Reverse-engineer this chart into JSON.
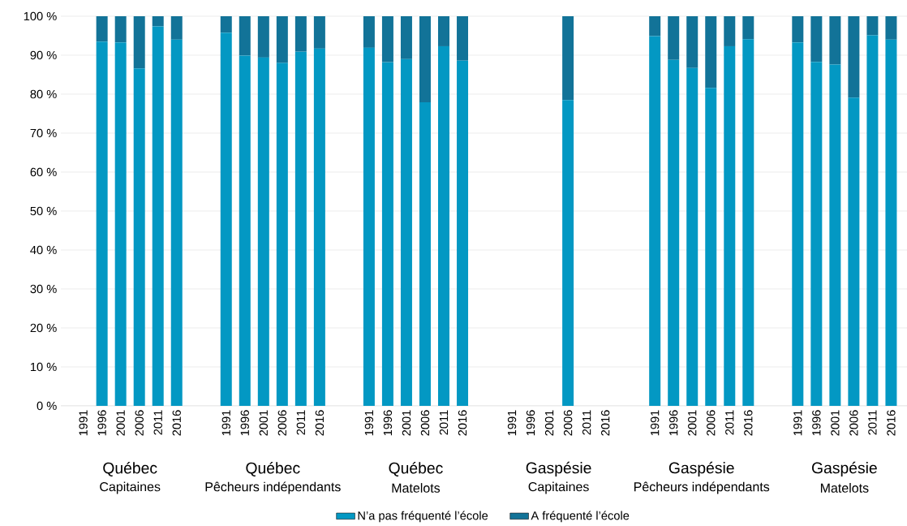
{
  "chart_data": {
    "type": "bar",
    "stacked": true,
    "categories": [
      "1991",
      "1996",
      "2001",
      "2006",
      "2011",
      "2016",
      "1991",
      "1996",
      "2001",
      "2006",
      "2011",
      "2016",
      "1991",
      "1996",
      "2001",
      "2006",
      "2011",
      "2016",
      "1991",
      "1996",
      "2001",
      "2006",
      "2011",
      "2016",
      "1991",
      "1996",
      "2001",
      "2006",
      "2011",
      "2016",
      "1991",
      "1996",
      "2001",
      "2006",
      "2011",
      "2016"
    ],
    "series": [
      {
        "name": "N’a pas fréquenté l’école",
        "color": "#0398c3",
        "values": [
          null,
          93.5,
          93.3,
          86.6,
          97.4,
          94.0,
          95.8,
          89.9,
          89.4,
          88.0,
          90.9,
          91.7,
          91.9,
          88.2,
          89.0,
          77.9,
          92.3,
          88.6,
          null,
          null,
          null,
          78.5,
          null,
          null,
          94.9,
          88.8,
          86.7,
          81.6,
          92.3,
          94.1,
          93.3,
          88.3,
          87.6,
          79.1,
          95.1,
          94.0
        ]
      },
      {
        "name": "A fréquenté l’école",
        "color": "#127398",
        "values": [
          null,
          6.5,
          6.7,
          13.4,
          2.6,
          6.0,
          4.2,
          10.1,
          10.6,
          12.0,
          9.1,
          8.3,
          8.1,
          11.8,
          11.0,
          22.1,
          7.7,
          11.4,
          null,
          null,
          null,
          21.5,
          null,
          null,
          5.1,
          11.2,
          13.3,
          18.4,
          7.7,
          5.9,
          6.7,
          11.7,
          12.4,
          20.9,
          4.9,
          6.0
        ]
      }
    ],
    "ylim": [
      0,
      100
    ],
    "yticks": [
      {
        "value": 0,
        "label": "0 %"
      },
      {
        "value": 10,
        "label": "10 %"
      },
      {
        "value": 20,
        "label": "20 %"
      },
      {
        "value": 30,
        "label": "30 %"
      },
      {
        "value": 40,
        "label": "40 %"
      },
      {
        "value": 50,
        "label": "50 %"
      },
      {
        "value": 60,
        "label": "60 %"
      },
      {
        "value": 70,
        "label": "70 %"
      },
      {
        "value": 80,
        "label": "80 %"
      },
      {
        "value": 90,
        "label": "90 %"
      },
      {
        "value": 100,
        "label": "100 %"
      }
    ],
    "grid": "y",
    "legend": "bottom",
    "annotations": [
      "Québec",
      "Capitaines",
      "Québec",
      "Pêcheurs indépendants",
      "Québec",
      "Matelots",
      "Gaspésie",
      "Capitaines",
      "Gaspésie",
      "Pêcheurs indépendants",
      "Gaspésie",
      "Matelots"
    ]
  }
}
